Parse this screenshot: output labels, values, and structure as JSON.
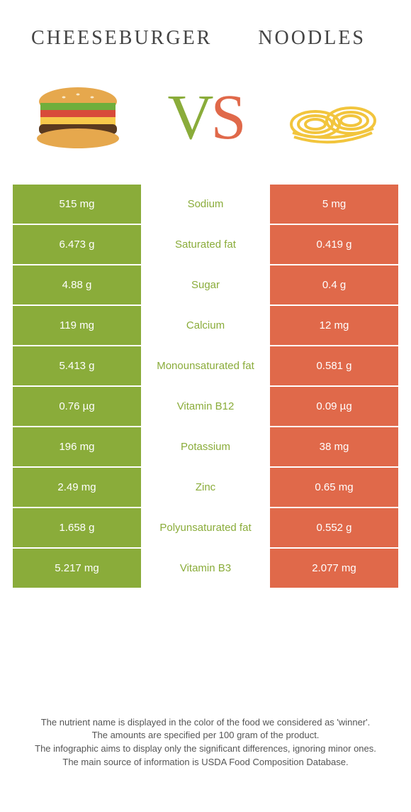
{
  "header": {
    "left_title": "Cheeseburger",
    "right_title": "Noodles",
    "vs_v": "V",
    "vs_s": "S"
  },
  "colors": {
    "left_bg": "#8aac3a",
    "right_bg": "#e0694a",
    "left_text": "#8aac3a",
    "right_text": "#e0694a",
    "cell_text": "#ffffff",
    "page_bg": "#ffffff",
    "title_color": "#444444",
    "footnote_color": "#555555"
  },
  "rows": [
    {
      "left_value": "515 mg",
      "nutrient": "Sodium",
      "right_value": "5 mg",
      "winner": "left"
    },
    {
      "left_value": "6.473 g",
      "nutrient": "Saturated fat",
      "right_value": "0.419 g",
      "winner": "left"
    },
    {
      "left_value": "4.88 g",
      "nutrient": "Sugar",
      "right_value": "0.4 g",
      "winner": "left"
    },
    {
      "left_value": "119 mg",
      "nutrient": "Calcium",
      "right_value": "12 mg",
      "winner": "left"
    },
    {
      "left_value": "5.413 g",
      "nutrient": "Monounsaturated fat",
      "right_value": "0.581 g",
      "winner": "left"
    },
    {
      "left_value": "0.76 µg",
      "nutrient": "Vitamin B12",
      "right_value": "0.09 µg",
      "winner": "left"
    },
    {
      "left_value": "196 mg",
      "nutrient": "Potassium",
      "right_value": "38 mg",
      "winner": "left"
    },
    {
      "left_value": "2.49 mg",
      "nutrient": "Zinc",
      "right_value": "0.65 mg",
      "winner": "left"
    },
    {
      "left_value": "1.658 g",
      "nutrient": "Polyunsaturated fat",
      "right_value": "0.552 g",
      "winner": "left"
    },
    {
      "left_value": "5.217 mg",
      "nutrient": "Vitamin B3",
      "right_value": "2.077 mg",
      "winner": "left"
    }
  ],
  "footnotes": {
    "line1": "The nutrient name is displayed in the color of the food we considered as 'winner'.",
    "line2": "The amounts are specified per 100 gram of the product.",
    "line3": "The infographic aims to display only the significant differences, ignoring minor ones.",
    "line4": "The main source of information is USDA Food Composition Database."
  }
}
